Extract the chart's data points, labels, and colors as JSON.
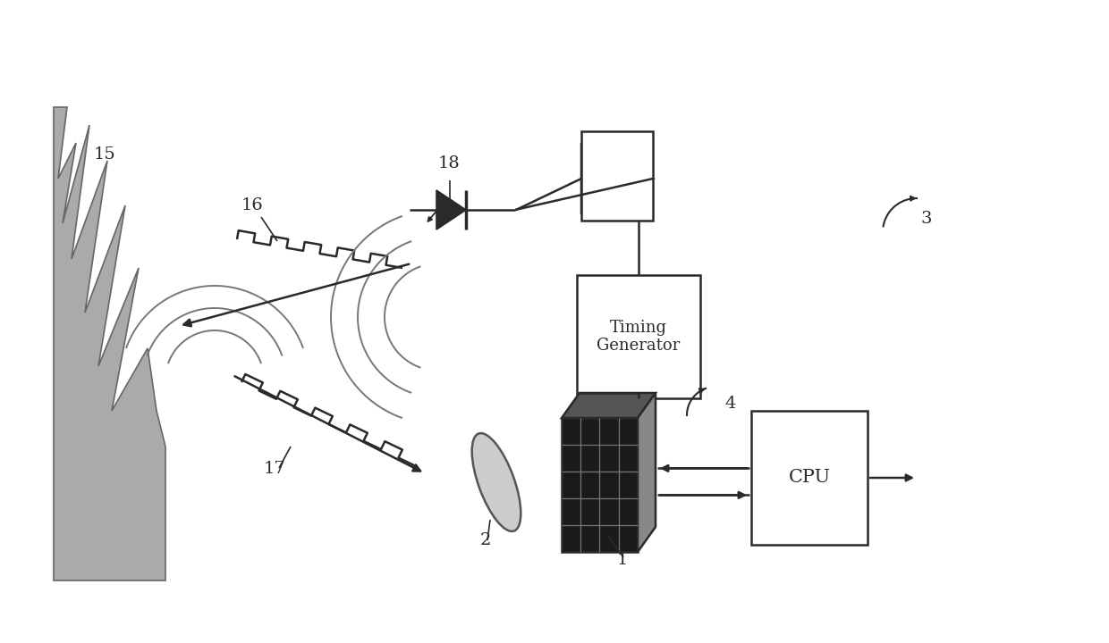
{
  "bg_color": "#ffffff",
  "line_color": "#2a2a2a",
  "lw": 1.8,
  "timing_text": "Timing\nGenerator",
  "cpu_text": "CPU",
  "mountain_color": "#aaaaaa",
  "mountain_edge": "#666666",
  "grid_face": "#2a2a2a",
  "grid_line": "#888888",
  "det_3d_top": "#666666",
  "det_3d_right": "#888888"
}
